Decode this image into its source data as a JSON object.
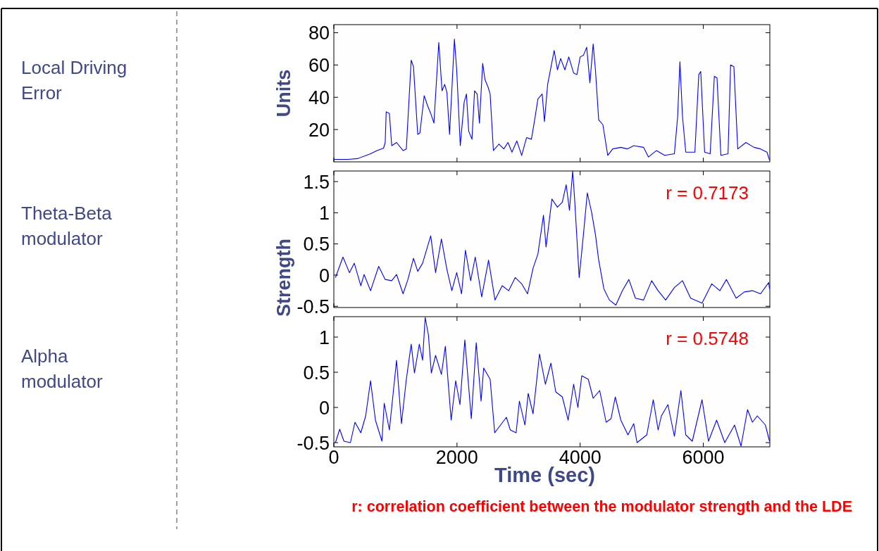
{
  "chart_data": [
    {
      "type": "line",
      "ylabel": "Units",
      "annotations": [
        "Local Driving Error"
      ],
      "xlim": [
        0,
        7080
      ],
      "xticks": [
        0,
        2000,
        4000,
        6000
      ],
      "ylim": [
        0,
        85
      ],
      "yticks": [
        20,
        40,
        60,
        80
      ],
      "tick_labels": "y",
      "series": [
        {
          "color": "#0000ff",
          "x": [
            0,
            227,
            385,
            596,
            700,
            807,
            834,
            850,
            902,
            940,
            1018,
            1124,
            1177,
            1256,
            1293,
            1362,
            1398,
            1467,
            1520,
            1573,
            1625,
            1704,
            1757,
            1800,
            1836,
            1879,
            1958,
            1995,
            2053,
            2116,
            2153,
            2190,
            2243,
            2285,
            2327,
            2364,
            2417,
            2454,
            2507,
            2538,
            2591,
            2681,
            2760,
            2828,
            2892,
            2971,
            3050,
            3129,
            3208,
            3261,
            3314,
            3383,
            3420,
            3472,
            3541,
            3578,
            3631,
            3683,
            3752,
            3815,
            3857,
            3894,
            3947,
            4000,
            4053,
            4079,
            4106,
            4158,
            4211,
            4248,
            4301,
            4369,
            4448,
            4528,
            4660,
            4765,
            4870,
            5029,
            5108,
            5240,
            5372,
            5530,
            5583,
            5620,
            5662,
            5715,
            5863,
            5926,
            5958,
            6021,
            6111,
            6179,
            6222,
            6285,
            6401,
            6443,
            6496,
            6559,
            6691,
            6823,
            6929,
            7034,
            7075
          ],
          "values": [
            1.5,
            1.5,
            2,
            5,
            7,
            8.5,
            12,
            31,
            30,
            10,
            12,
            7,
            8,
            63,
            59,
            17,
            18,
            41,
            35,
            30,
            24,
            74,
            44,
            48,
            43,
            17,
            76,
            57,
            10,
            37,
            42,
            19,
            14,
            44,
            42,
            24,
            61,
            51,
            46,
            42,
            7,
            11,
            8,
            12,
            6,
            13,
            4,
            15,
            14,
            26,
            39,
            42,
            25,
            48,
            null,
            69,
            57,
            64,
            57,
            65,
            null,
            55,
            54,
            65,
            66,
            null,
            71,
            49,
            73,
            57,
            26,
            23,
            4,
            8,
            9,
            8,
            10,
            9,
            3,
            7,
            4,
            5,
            28,
            62,
            28,
            6,
            6,
            54,
            56,
            6,
            5,
            53,
            52,
            4,
            5,
            60,
            59,
            8,
            12,
            9,
            8,
            6,
            1
          ]
        }
      ]
    },
    {
      "type": "line",
      "ylabel": "Strength",
      "annotations": [
        "Theta-Beta modulator",
        "r = 0.7173"
      ],
      "xlim": [
        0,
        7080
      ],
      "xticks": [
        0,
        2000,
        4000,
        6000
      ],
      "ylim": [
        -0.52,
        1.67
      ],
      "yticks": [
        -0.5,
        0,
        0.5,
        1,
        1.5
      ],
      "tick_labels": "y",
      "series": [
        {
          "color": "#0000ff",
          "x": [
            26,
            148,
            253,
            332,
            438,
            491,
            596,
            728,
            834,
            939,
            1018,
            1124,
            1203,
            1293,
            1362,
            1441,
            1573,
            1652,
            1747,
            1836,
            1916,
            1995,
            2074,
            2137,
            2222,
            2296,
            2401,
            2512,
            2617,
            2734,
            2839,
            2945,
            3050,
            3145,
            3235,
            3314,
            3404,
            3446,
            3541,
            3631,
            3710,
            3773,
            3826,
            3879,
            3910,
            3984,
            4053,
            4116,
            4185,
            4248,
            4301,
            4385,
            4474,
            4580,
            4686,
            4791,
            4897,
            5029,
            5161,
            5266,
            5388,
            5530,
            5662,
            5794,
            5979,
            6137,
            6269,
            6375,
            6533,
            6665,
            6797,
            6929,
            7061,
            7075
          ],
          "values": [
            -0.04,
            0.29,
            0.04,
            0.19,
            -0.17,
            0.01,
            -0.25,
            0.14,
            -0.07,
            -0.09,
            0.01,
            -0.3,
            -0.07,
            0.27,
            0.06,
            0.19,
            0.63,
            0.04,
            0.58,
            0.09,
            -0.25,
            0.04,
            -0.3,
            0.4,
            -0.09,
            0.29,
            -0.35,
            0.24,
            -0.4,
            -0.17,
            -0.25,
            -0.04,
            -0.14,
            -0.3,
            0.11,
            0.34,
            0.96,
            0.45,
            1.22,
            1.09,
            1.17,
            1.45,
            1.04,
            1.67,
            1.22,
            -0.04,
            0.65,
            1.32,
            1.01,
            0.65,
            0.24,
            -0.22,
            -0.4,
            -0.48,
            -0.25,
            -0.07,
            -0.37,
            -0.4,
            -0.09,
            -0.25,
            -0.4,
            -0.2,
            -0.09,
            -0.37,
            -0.45,
            -0.14,
            -0.25,
            -0.07,
            -0.37,
            -0.27,
            -0.25,
            -0.3,
            -0.12,
            -0.22
          ]
        }
      ]
    },
    {
      "type": "line",
      "xlabel": "Time (sec)",
      "annotations": [
        "Alpha modulator",
        "r = 0.5748",
        "r: correlation coefficient between the modulator strength and the LDE"
      ],
      "xlim": [
        0,
        7080
      ],
      "xticks": [
        0,
        2000,
        4000,
        6000
      ],
      "ylim": [
        -0.56,
        1.29
      ],
      "yticks": [
        -0.5,
        0,
        0.5,
        1
      ],
      "series": [
        {
          "color": "#0000ff",
          "x": [
            26,
            95,
            164,
            269,
            343,
            438,
            517,
            596,
            675,
            781,
            818,
            902,
            1018,
            1098,
            1177,
            1256,
            1309,
            1388,
            1441,
            1483,
            1536,
            1583,
            1652,
            1747,
            1810,
            1905,
            1979,
            2048,
            2127,
            2232,
            2312,
            2391,
            2433,
            2538,
            2612,
            2707,
            2802,
            2865,
            2960,
            3013,
            3103,
            3156,
            3235,
            3340,
            3435,
            3525,
            3604,
            3710,
            3805,
            3894,
            3963,
            4026,
            4132,
            4211,
            4317,
            4422,
            4501,
            4570,
            4660,
            4776,
            4870,
            4923,
            5082,
            5187,
            5266,
            5319,
            5425,
            5530,
            5636,
            5715,
            5821,
            5979,
            6084,
            6216,
            6348,
            6507,
            6612,
            6718,
            6797,
            6876,
            7008,
            7075
          ],
          "values": [
            -0.5,
            -0.31,
            -0.48,
            -0.5,
            -0.21,
            -0.36,
            -0.12,
            0.38,
            -0.18,
            -0.48,
            0.06,
            -0.32,
            0.67,
            -0.23,
            0.4,
            0.9,
            0.49,
            0.9,
            0.67,
            1.28,
            1.03,
            0.49,
            0.74,
            0.47,
            0.87,
            -0.18,
            0.38,
            0.04,
            0.96,
            -0.16,
            0.92,
            0.09,
            0.56,
            0.4,
            -0.36,
            -0.25,
            -0.14,
            -0.32,
            -0.36,
            0.09,
            -0.25,
            0.2,
            -0.09,
            0.76,
            0.33,
            0.63,
            0.22,
            0.15,
            -0.18,
            0.33,
            0,
            0.45,
            0.4,
            0.13,
            0.24,
            -0.21,
            -0.16,
            0.15,
            -0.18,
            -0.39,
            -0.23,
            -0.5,
            -0.39,
            0.11,
            -0.32,
            -0.12,
            0.04,
            -0.41,
            0.24,
            -0.39,
            -0.48,
            0.11,
            -0.48,
            -0.18,
            -0.5,
            -0.25,
            -0.55,
            -0.03,
            -0.21,
            -0.12,
            -0.25,
            -0.48
          ]
        }
      ]
    }
  ]
}
